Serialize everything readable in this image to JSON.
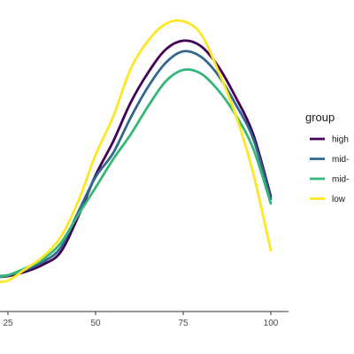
{
  "chart_data": {
    "type": "line",
    "title": "",
    "xlabel": "",
    "ylabel": "",
    "x_ticks": [
      25,
      50,
      75,
      100
    ],
    "x_tick_labels": [
      "25",
      "50",
      "75",
      "100"
    ],
    "grid": false,
    "legend": {
      "title": "group",
      "placement": "right",
      "entries": [
        "high",
        "mid-",
        "mid-",
        "low"
      ]
    },
    "series": [
      {
        "name": "high",
        "color": "#440154",
        "points": [
          [
            18,
            313
          ],
          [
            21,
            313
          ],
          [
            25,
            312
          ],
          [
            30,
            307
          ],
          [
            35,
            299
          ],
          [
            40,
            285
          ],
          [
            45,
            245
          ],
          [
            50,
            198
          ],
          [
            55,
            160
          ],
          [
            60,
            116
          ],
          [
            65,
            82
          ],
          [
            70,
            56
          ],
          [
            75,
            46
          ],
          [
            80,
            52
          ],
          [
            85,
            75
          ],
          [
            90,
            110
          ],
          [
            95,
            152
          ],
          [
            100,
            222
          ]
        ]
      },
      {
        "name": "mid-",
        "color": "#31688E",
        "points": [
          [
            18,
            312
          ],
          [
            21,
            312
          ],
          [
            25,
            311
          ],
          [
            30,
            305
          ],
          [
            35,
            296
          ],
          [
            40,
            280
          ],
          [
            45,
            240
          ],
          [
            50,
            200
          ],
          [
            55,
            173
          ],
          [
            60,
            133
          ],
          [
            65,
            98
          ],
          [
            70,
            71
          ],
          [
            75,
            58
          ],
          [
            80,
            64
          ],
          [
            85,
            85
          ],
          [
            90,
            118
          ],
          [
            95,
            157
          ],
          [
            100,
            225
          ]
        ]
      },
      {
        "name": "mid-",
        "color": "#35B779",
        "points": [
          [
            18,
            313
          ],
          [
            21,
            313
          ],
          [
            25,
            311
          ],
          [
            30,
            303
          ],
          [
            35,
            293
          ],
          [
            40,
            275
          ],
          [
            45,
            243
          ],
          [
            50,
            212
          ],
          [
            55,
            180
          ],
          [
            60,
            152
          ],
          [
            65,
            120
          ],
          [
            70,
            92
          ],
          [
            75,
            79
          ],
          [
            80,
            83
          ],
          [
            85,
            102
          ],
          [
            90,
            130
          ],
          [
            95,
            168
          ],
          [
            100,
            230
          ]
        ]
      },
      {
        "name": "low",
        "color": "#FDE725",
        "points": [
          [
            18,
            320
          ],
          [
            21,
            319
          ],
          [
            25,
            317
          ],
          [
            30,
            304
          ],
          [
            35,
            290
          ],
          [
            40,
            268
          ],
          [
            45,
            228
          ],
          [
            50,
            175
          ],
          [
            55,
            132
          ],
          [
            60,
            78
          ],
          [
            65,
            46
          ],
          [
            70,
            27
          ],
          [
            75,
            24
          ],
          [
            80,
            38
          ],
          [
            85,
            80
          ],
          [
            90,
            130
          ],
          [
            95,
            196
          ],
          [
            100,
            283
          ]
        ]
      }
    ]
  }
}
